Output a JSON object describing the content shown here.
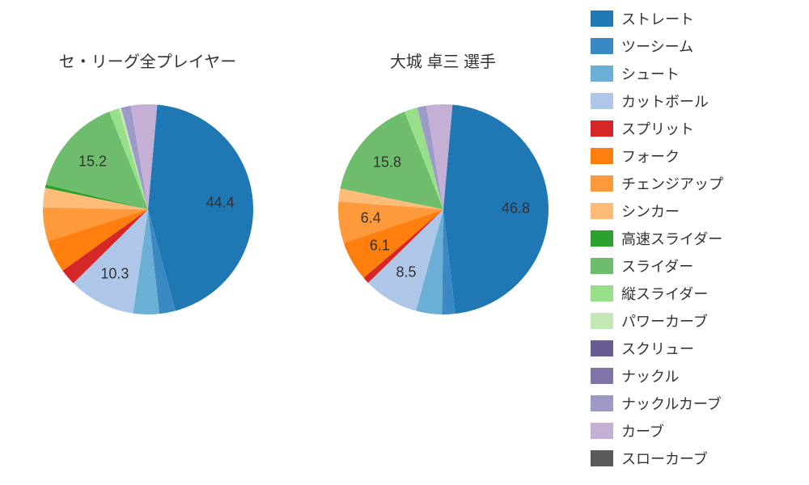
{
  "background_color": "#ffffff",
  "pie_radius": 130,
  "label_radius": 90,
  "label_threshold": 5.5,
  "label_fontsize": 18,
  "title_fontsize": 20,
  "legend_fontsize": 18,
  "start_angle_deg": 85,
  "direction": "clockwise",
  "legend": {
    "items": [
      {
        "label": "ストレート",
        "color": "#1f77b4"
      },
      {
        "label": "ツーシーム",
        "color": "#3a89c2"
      },
      {
        "label": "シュート",
        "color": "#6baed6"
      },
      {
        "label": "カットボール",
        "color": "#aec7e8"
      },
      {
        "label": "スプリット",
        "color": "#d62728"
      },
      {
        "label": "フォーク",
        "color": "#ff7f0e"
      },
      {
        "label": "チェンジアップ",
        "color": "#ff9a3c"
      },
      {
        "label": "シンカー",
        "color": "#ffbb78"
      },
      {
        "label": "高速スライダー",
        "color": "#2ca02c"
      },
      {
        "label": "スライダー",
        "color": "#6dbd6d"
      },
      {
        "label": "縦スライダー",
        "color": "#98df8a"
      },
      {
        "label": "パワーカーブ",
        "color": "#c5e8b7"
      },
      {
        "label": "スクリュー",
        "color": "#6b5b95"
      },
      {
        "label": "ナックル",
        "color": "#8273a9"
      },
      {
        "label": "ナックルカーブ",
        "color": "#9e9ac8"
      },
      {
        "label": "カーブ",
        "color": "#c5b0d5"
      },
      {
        "label": "スローカーブ",
        "color": "#5a5a5a"
      }
    ]
  },
  "charts": [
    {
      "title": "セ・リーグ全プレイヤー",
      "slices": [
        {
          "pitch": "ストレート",
          "value": 44.4,
          "color": "#1f77b4"
        },
        {
          "pitch": "ツーシーム",
          "value": 2.5,
          "color": "#3a89c2"
        },
        {
          "pitch": "シュート",
          "value": 4.0,
          "color": "#6baed6"
        },
        {
          "pitch": "カットボール",
          "value": 10.3,
          "color": "#aec7e8"
        },
        {
          "pitch": "スプリット",
          "value": 2.5,
          "color": "#d62728"
        },
        {
          "pitch": "フォーク",
          "value": 5.0,
          "color": "#ff7f0e"
        },
        {
          "pitch": "チェンジアップ",
          "value": 5.2,
          "color": "#ff9a3c"
        },
        {
          "pitch": "シンカー",
          "value": 3.0,
          "color": "#ffbb78"
        },
        {
          "pitch": "高速スライダー",
          "value": 0.5,
          "color": "#2ca02c"
        },
        {
          "pitch": "スライダー",
          "value": 15.2,
          "color": "#6dbd6d"
        },
        {
          "pitch": "縦スライダー",
          "value": 1.5,
          "color": "#98df8a"
        },
        {
          "pitch": "パワーカーブ",
          "value": 0.4,
          "color": "#c5e8b7"
        },
        {
          "pitch": "ナックルカーブ",
          "value": 1.5,
          "color": "#9e9ac8"
        },
        {
          "pitch": "カーブ",
          "value": 4.0,
          "color": "#c5b0d5"
        }
      ]
    },
    {
      "title": "大城 卓三  選手",
      "slices": [
        {
          "pitch": "ストレート",
          "value": 46.8,
          "color": "#1f77b4"
        },
        {
          "pitch": "ツーシーム",
          "value": 2.0,
          "color": "#3a89c2"
        },
        {
          "pitch": "シュート",
          "value": 4.0,
          "color": "#6baed6"
        },
        {
          "pitch": "カットボール",
          "value": 8.5,
          "color": "#aec7e8"
        },
        {
          "pitch": "スプリット",
          "value": 1.0,
          "color": "#d62728"
        },
        {
          "pitch": "フォーク",
          "value": 6.1,
          "color": "#ff7f0e"
        },
        {
          "pitch": "チェンジアップ",
          "value": 6.4,
          "color": "#ff9a3c"
        },
        {
          "pitch": "シンカー",
          "value": 2.0,
          "color": "#ffbb78"
        },
        {
          "pitch": "スライダー",
          "value": 15.8,
          "color": "#6dbd6d"
        },
        {
          "pitch": "縦スライダー",
          "value": 2.0,
          "color": "#98df8a"
        },
        {
          "pitch": "ナックルカーブ",
          "value": 1.4,
          "color": "#9e9ac8"
        },
        {
          "pitch": "カーブ",
          "value": 4.0,
          "color": "#c5b0d5"
        }
      ]
    }
  ]
}
